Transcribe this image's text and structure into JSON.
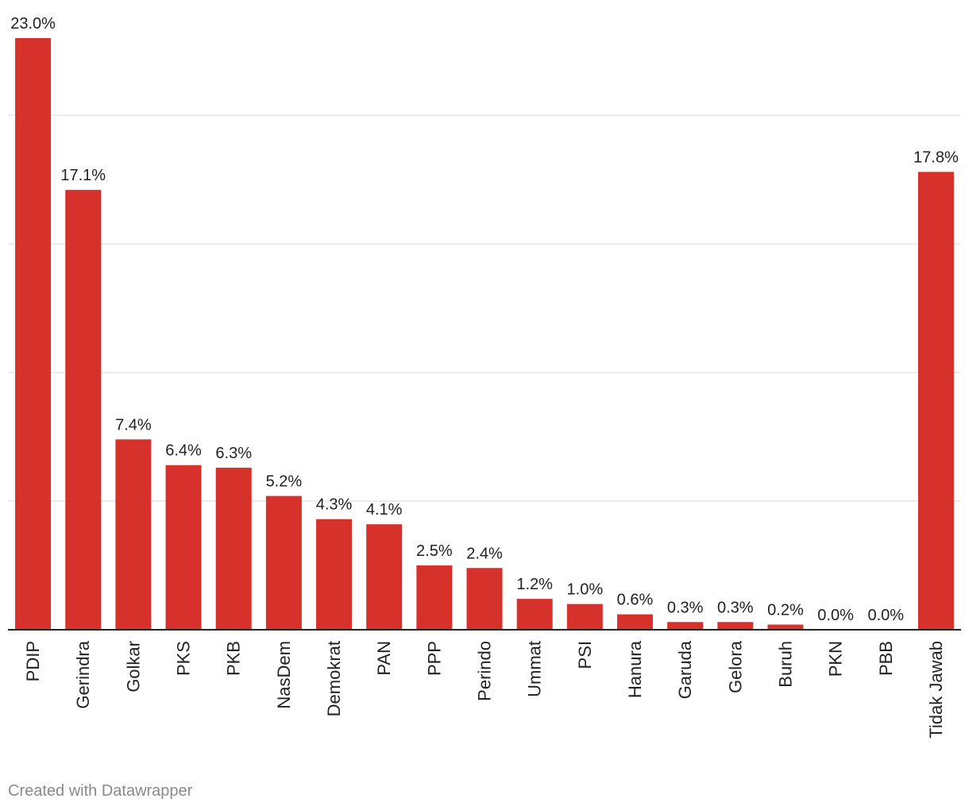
{
  "chart_data": {
    "type": "bar",
    "categories": [
      "PDIP",
      "Gerindra",
      "Golkar",
      "PKS",
      "PKB",
      "NasDem",
      "Demokrat",
      "PAN",
      "PPP",
      "Perindo",
      "Ummat",
      "PSI",
      "Hanura",
      "Garuda",
      "Gelora",
      "Buruh",
      "PKN",
      "PBB",
      "Tidak Jawab"
    ],
    "values": [
      23.0,
      17.1,
      7.4,
      6.4,
      6.3,
      5.2,
      4.3,
      4.1,
      2.5,
      2.4,
      1.2,
      1.0,
      0.6,
      0.3,
      0.3,
      0.2,
      0.0,
      0.0,
      17.8
    ],
    "value_labels": [
      "23.0%",
      "17.1%",
      "7.4%",
      "6.4%",
      "6.3%",
      "5.2%",
      "4.3%",
      "4.1%",
      "2.5%",
      "2.4%",
      "1.2%",
      "1.0%",
      "0.6%",
      "0.3%",
      "0.3%",
      "0.2%",
      "0.0%",
      "0.0%",
      "17.8%"
    ],
    "title": "",
    "xlabel": "",
    "ylabel": "",
    "ylim": [
      0,
      23
    ],
    "grid": true,
    "bar_color": "#d7312b"
  },
  "footer": {
    "credit": "Created with Datawrapper"
  }
}
